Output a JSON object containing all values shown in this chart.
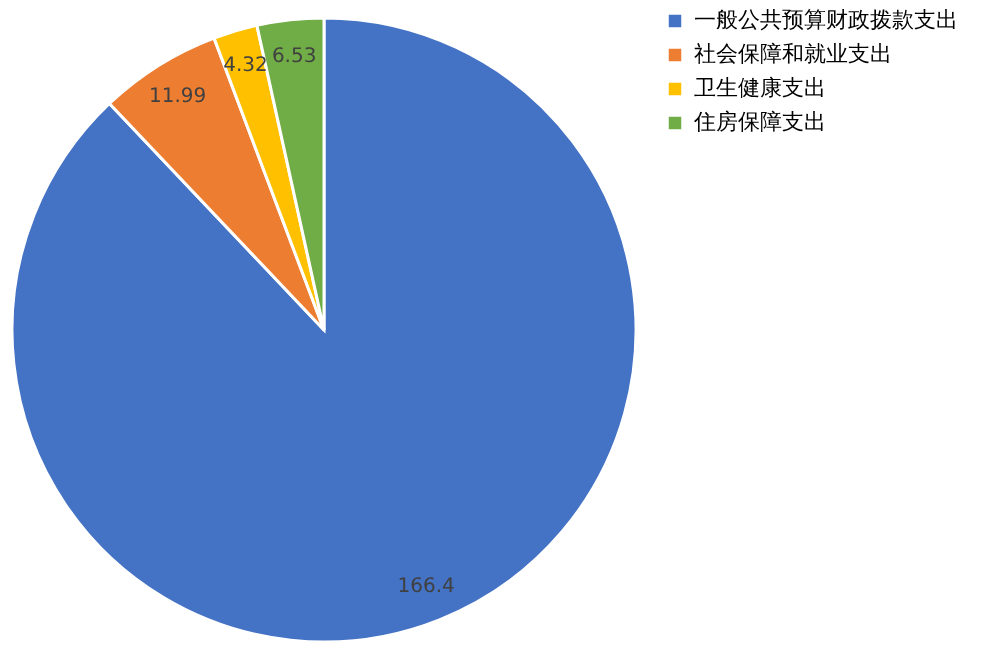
{
  "chart_data": {
    "type": "pie",
    "categories": [
      "一般公共预算财政拨款支出",
      "社会保障和就业支出",
      "卫生健康支出",
      "住房保障支出"
    ],
    "values": [
      166.4,
      11.99,
      4.32,
      6.53
    ],
    "colors": [
      "#4472c4",
      "#ed7d31",
      "#ffc000",
      "#70ad47"
    ],
    "data_labels": true,
    "legend": "right"
  }
}
